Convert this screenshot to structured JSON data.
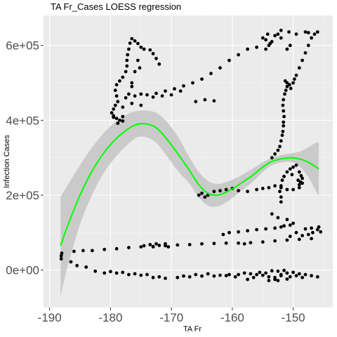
{
  "chart_data": {
    "type": "scatter",
    "title": "TA Fr_Cases LOESS regression",
    "xlabel": "TA Fr",
    "ylabel": "Infection Cases",
    "xlim": [
      -191,
      -143.5
    ],
    "ylim": [
      -100000,
      680000
    ],
    "x_ticks": [
      {
        "value": -190,
        "label": "-190"
      },
      {
        "value": -180,
        "label": "-180"
      },
      {
        "value": -170,
        "label": "-170"
      },
      {
        "value": -160,
        "label": "-160"
      },
      {
        "value": -150,
        "label": "-150"
      }
    ],
    "y_ticks": [
      {
        "value": 0,
        "label": "0e+00"
      },
      {
        "value": 200000,
        "label": "2e+05"
      },
      {
        "value": 400000,
        "label": "4e+05"
      },
      {
        "value": 600000,
        "label": "6e+05"
      }
    ],
    "grid": true,
    "colors": {
      "panel": "#ebebeb",
      "grid_major": "#ffffff",
      "grid_minor": "#f5f5f5",
      "points": "#000000",
      "fit_line": "#00ff00",
      "ribbon": "#c8c8c8"
    },
    "points": [
      [
        -188.1,
        38000
      ],
      [
        -188.1,
        30000
      ],
      [
        -186.5,
        22000
      ],
      [
        -185.5,
        12000
      ],
      [
        -184.0,
        8000
      ],
      [
        -182.5,
        -3000
      ],
      [
        -181.0,
        -8000
      ],
      [
        -179.0,
        -8000
      ],
      [
        -177.0,
        -12000
      ],
      [
        -175.0,
        -14000
      ],
      [
        -173.0,
        -20000
      ],
      [
        -171.0,
        -22000
      ],
      [
        -169.0,
        -20000
      ],
      [
        -167.0,
        -18000
      ],
      [
        -165.0,
        -16000
      ],
      [
        -163.0,
        -16000
      ],
      [
        -161.0,
        -15000
      ],
      [
        -159.0,
        -12000
      ],
      [
        -158.0,
        -8000
      ],
      [
        -157.0,
        -10000
      ],
      [
        -156.0,
        -12000
      ],
      [
        -155.0,
        -14000
      ],
      [
        -154.0,
        -18000
      ],
      [
        -153.0,
        -20000
      ],
      [
        -152.0,
        -12000
      ],
      [
        -151.0,
        -8000
      ],
      [
        -150.0,
        -6000
      ],
      [
        -149.0,
        -10000
      ],
      [
        -148.0,
        -12000
      ],
      [
        -147.0,
        -15000
      ],
      [
        -146.0,
        -18000
      ],
      [
        -153.5,
        -2000
      ],
      [
        -152.5,
        -3000
      ],
      [
        -151.5,
        -1000
      ],
      [
        -152.0,
        -15000
      ],
      [
        -153.0,
        -25000
      ],
      [
        -152.5,
        -28000
      ],
      [
        -154.0,
        -28000
      ],
      [
        -151.0,
        -24000
      ],
      [
        -154.5,
        -8000
      ],
      [
        -150.5,
        -18000
      ],
      [
        -149.5,
        -15000
      ],
      [
        -148.5,
        -20000
      ],
      [
        -157.5,
        -25000
      ],
      [
        -155.5,
        -6000
      ],
      [
        -156.5,
        -20000
      ],
      [
        -160.5,
        -12000
      ],
      [
        -159.5,
        -18000
      ],
      [
        -162.0,
        -14000
      ],
      [
        -164.0,
        -10000
      ],
      [
        -166.0,
        -12000
      ],
      [
        -168.0,
        -16000
      ],
      [
        -172.0,
        -18000
      ],
      [
        -174.0,
        -12000
      ],
      [
        -176.0,
        -10000
      ],
      [
        -178.0,
        -6000
      ],
      [
        -180.0,
        -4000
      ],
      [
        -188.0,
        45000
      ],
      [
        -186.0,
        50000
      ],
      [
        -184.5,
        52000
      ],
      [
        -183.0,
        52000
      ],
      [
        -181.0,
        55000
      ],
      [
        -179.0,
        57000
      ],
      [
        -177.0,
        60000
      ],
      [
        -175.0,
        62000
      ],
      [
        -173.0,
        63000
      ],
      [
        -171.0,
        65000
      ],
      [
        -169.0,
        67000
      ],
      [
        -167.0,
        68000
      ],
      [
        -165.0,
        70000
      ],
      [
        -163.0,
        71000
      ],
      [
        -161.0,
        72000
      ],
      [
        -159.0,
        72000
      ],
      [
        -157.0,
        73000
      ],
      [
        -155.0,
        75000
      ],
      [
        -153.0,
        78000
      ],
      [
        -151.0,
        80000
      ],
      [
        -149.0,
        82000
      ],
      [
        -147.0,
        84000
      ],
      [
        -158.0,
        70000
      ],
      [
        -173.5,
        68000
      ],
      [
        -173.0,
        62000
      ],
      [
        -172.5,
        70000
      ],
      [
        -172.0,
        66000
      ],
      [
        -171.0,
        70000
      ],
      [
        -170.5,
        62000
      ],
      [
        -174.5,
        65000
      ],
      [
        -161.5,
        95000
      ],
      [
        -160.5,
        100000
      ],
      [
        -159.0,
        102000
      ],
      [
        -157.5,
        105000
      ],
      [
        -156.0,
        108000
      ],
      [
        -154.5,
        110000
      ],
      [
        -153.0,
        112000
      ],
      [
        -152.0,
        115000
      ],
      [
        -151.5,
        118000
      ],
      [
        -150.5,
        120000
      ],
      [
        -150.0,
        125000
      ],
      [
        -151.0,
        135000
      ],
      [
        -152.5,
        140000
      ],
      [
        -153.5,
        150000
      ],
      [
        -148.0,
        110000
      ],
      [
        -147.0,
        112000
      ],
      [
        -146.0,
        108000
      ],
      [
        -145.5,
        102000
      ],
      [
        -145.8,
        115000
      ],
      [
        -146.8,
        100000
      ],
      [
        -147.5,
        95000
      ],
      [
        -148.5,
        92000
      ],
      [
        -149.5,
        100000
      ],
      [
        -150.5,
        90000
      ],
      [
        -152.0,
        182000
      ],
      [
        -152.0,
        195000
      ],
      [
        -152.2,
        210000
      ],
      [
        -152.0,
        225000
      ],
      [
        -151.8,
        240000
      ],
      [
        -151.5,
        250000
      ],
      [
        -165.5,
        200000
      ],
      [
        -165.0,
        205000
      ],
      [
        -164.0,
        200000
      ],
      [
        -163.0,
        210000
      ],
      [
        -162.0,
        212000
      ],
      [
        -161.0,
        215000
      ],
      [
        -160.0,
        218000
      ],
      [
        -159.0,
        212000
      ],
      [
        -157.5,
        210000
      ],
      [
        -156.0,
        215000
      ],
      [
        -155.0,
        218000
      ],
      [
        -154.0,
        220000
      ],
      [
        -153.0,
        225000
      ],
      [
        -152.0,
        220000
      ],
      [
        -151.0,
        215000
      ],
      [
        -150.0,
        215000
      ],
      [
        -149.0,
        220000
      ],
      [
        -164.5,
        195000
      ],
      [
        -153.5,
        300000
      ],
      [
        -153.0,
        310000
      ],
      [
        -152.5,
        320000
      ],
      [
        -152.2,
        330000
      ],
      [
        -152.0,
        345000
      ],
      [
        -151.8,
        360000
      ],
      [
        -151.7,
        370000
      ],
      [
        -151.6,
        385000
      ],
      [
        -151.6,
        395000
      ],
      [
        -151.5,
        410000
      ],
      [
        -151.6,
        425000
      ],
      [
        -151.7,
        440000
      ],
      [
        -151.6,
        455000
      ],
      [
        -151.4,
        470000
      ],
      [
        -151.2,
        480000
      ],
      [
        -151.0,
        490000
      ],
      [
        -150.6,
        495000
      ],
      [
        -150.0,
        500000
      ],
      [
        -149.8,
        510000
      ],
      [
        -150.4,
        485000
      ],
      [
        -151.0,
        500000
      ],
      [
        -151.3,
        505000
      ],
      [
        -151.5,
        250000
      ],
      [
        -151.0,
        262000
      ],
      [
        -150.5,
        270000
      ],
      [
        -150.0,
        275000
      ],
      [
        -149.5,
        280000
      ],
      [
        -149.0,
        262000
      ],
      [
        -148.7,
        252000
      ],
      [
        -148.5,
        245000
      ],
      [
        -148.8,
        235000
      ],
      [
        -149.2,
        240000
      ],
      [
        -150.2,
        255000
      ],
      [
        -149.0,
        228000
      ],
      [
        -148.5,
        232000
      ],
      [
        -149.5,
        520000
      ],
      [
        -149.0,
        540000
      ],
      [
        -148.5,
        560000
      ],
      [
        -148.0,
        580000
      ],
      [
        -147.5,
        600000
      ],
      [
        -147.0,
        620000
      ],
      [
        -146.5,
        630000
      ],
      [
        -146.0,
        636000
      ],
      [
        -147.5,
        634000
      ],
      [
        -148.0,
        636000
      ],
      [
        -150.5,
        600000
      ],
      [
        -151.0,
        590000
      ],
      [
        -152.0,
        620000
      ],
      [
        -152.5,
        630000
      ],
      [
        -153.0,
        626000
      ],
      [
        -153.5,
        610000
      ],
      [
        -154.0,
        600000
      ],
      [
        -154.5,
        590000
      ],
      [
        -155.0,
        620000
      ],
      [
        -154.2,
        630000
      ],
      [
        -153.8,
        605000
      ],
      [
        -154.5,
        615000
      ],
      [
        -152.0,
        640000
      ],
      [
        -150.7,
        636000
      ],
      [
        -149.5,
        630000
      ],
      [
        -156.0,
        595000
      ],
      [
        -157.5,
        590000
      ],
      [
        -159.0,
        575000
      ],
      [
        -160.5,
        560000
      ],
      [
        -162.0,
        540000
      ],
      [
        -163.5,
        525000
      ],
      [
        -165.0,
        510000
      ],
      [
        -166.5,
        500000
      ],
      [
        -168.0,
        492000
      ],
      [
        -169.5,
        484000
      ],
      [
        -171.0,
        478000
      ],
      [
        -172.5,
        472000
      ],
      [
        -174.0,
        468000
      ],
      [
        -175.0,
        595000
      ],
      [
        -175.5,
        605000
      ],
      [
        -176.0,
        612000
      ],
      [
        -176.5,
        618000
      ],
      [
        -176.8,
        606000
      ],
      [
        -177.0,
        590000
      ],
      [
        -177.2,
        575000
      ],
      [
        -177.3,
        560000
      ],
      [
        -177.3,
        545000
      ],
      [
        -177.5,
        530000
      ],
      [
        -178.0,
        515000
      ],
      [
        -178.5,
        505000
      ],
      [
        -179.0,
        495000
      ],
      [
        -179.2,
        480000
      ],
      [
        -179.0,
        465000
      ],
      [
        -178.8,
        450000
      ],
      [
        -179.2,
        440000
      ],
      [
        -179.5,
        430000
      ],
      [
        -179.8,
        420000
      ],
      [
        -179.5,
        412000
      ],
      [
        -179.0,
        405000
      ],
      [
        -178.5,
        400000
      ],
      [
        -178.0,
        398000
      ],
      [
        -178.8,
        392000
      ],
      [
        -179.5,
        408000
      ],
      [
        -178.0,
        410000
      ],
      [
        -173.5,
        588000
      ],
      [
        -173.0,
        578000
      ],
      [
        -172.5,
        565000
      ],
      [
        -172.0,
        550000
      ],
      [
        -174.5,
        590000
      ],
      [
        -175.5,
        560000
      ],
      [
        -175.2,
        540000
      ],
      [
        -176.0,
        530000
      ],
      [
        -176.5,
        500000
      ],
      [
        -176.5,
        490000
      ],
      [
        -177.0,
        470000
      ],
      [
        -177.5,
        460000
      ],
      [
        -176.0,
        465000
      ],
      [
        -175.0,
        470000
      ],
      [
        -173.0,
        462000
      ],
      [
        -171.5,
        465000
      ],
      [
        -170.0,
        468000
      ],
      [
        -168.5,
        478000
      ],
      [
        -166.0,
        450000
      ],
      [
        -164.5,
        455000
      ],
      [
        -163.0,
        452000
      ],
      [
        -176.5,
        445000
      ],
      [
        -175.0,
        440000
      ],
      [
        -178.0,
        435000
      ]
    ],
    "fit": [
      [
        -188.2,
        65000
      ],
      [
        -187.0,
        120000
      ],
      [
        -185.0,
        200000
      ],
      [
        -183.0,
        265000
      ],
      [
        -181.0,
        315000
      ],
      [
        -179.0,
        352000
      ],
      [
        -177.0,
        378000
      ],
      [
        -175.5,
        390000
      ],
      [
        -174.0,
        390000
      ],
      [
        -172.5,
        380000
      ],
      [
        -171.0,
        355000
      ],
      [
        -169.0,
        312000
      ],
      [
        -167.0,
        265000
      ],
      [
        -165.5,
        228000
      ],
      [
        -164.0,
        205000
      ],
      [
        -162.5,
        200000
      ],
      [
        -161.0,
        208000
      ],
      [
        -159.5,
        222000
      ],
      [
        -158.0,
        238000
      ],
      [
        -156.5,
        255000
      ],
      [
        -155.0,
        275000
      ],
      [
        -153.5,
        290000
      ],
      [
        -152.0,
        297000
      ],
      [
        -150.5,
        300000
      ],
      [
        -149.0,
        297000
      ],
      [
        -147.5,
        288000
      ],
      [
        -146.5,
        278000
      ],
      [
        -145.8,
        270000
      ]
    ],
    "fit_upper": [
      [
        -188.2,
        195000
      ],
      [
        -187.0,
        228000
      ],
      [
        -185.0,
        280000
      ],
      [
        -183.0,
        328000
      ],
      [
        -181.0,
        368000
      ],
      [
        -179.0,
        398000
      ],
      [
        -177.0,
        418000
      ],
      [
        -175.5,
        425000
      ],
      [
        -174.0,
        426000
      ],
      [
        -172.5,
        420000
      ],
      [
        -171.0,
        400000
      ],
      [
        -169.0,
        358000
      ],
      [
        -167.0,
        300000
      ],
      [
        -165.5,
        262000
      ],
      [
        -164.0,
        238000
      ],
      [
        -162.5,
        230000
      ],
      [
        -161.0,
        235000
      ],
      [
        -159.5,
        245000
      ],
      [
        -158.0,
        258000
      ],
      [
        -156.5,
        272000
      ],
      [
        -155.0,
        288000
      ],
      [
        -153.5,
        300000
      ],
      [
        -152.0,
        307000
      ],
      [
        -150.5,
        311000
      ],
      [
        -149.0,
        316000
      ],
      [
        -147.5,
        328000
      ],
      [
        -146.5,
        338000
      ],
      [
        -145.8,
        342000
      ]
    ],
    "fit_lower": [
      [
        -188.2,
        -70000
      ],
      [
        -187.0,
        12000
      ],
      [
        -185.0,
        122000
      ],
      [
        -183.0,
        202000
      ],
      [
        -181.0,
        262000
      ],
      [
        -179.0,
        305000
      ],
      [
        -177.0,
        338000
      ],
      [
        -175.5,
        355000
      ],
      [
        -174.0,
        354000
      ],
      [
        -172.5,
        340000
      ],
      [
        -171.0,
        310000
      ],
      [
        -169.0,
        266000
      ],
      [
        -167.0,
        230000
      ],
      [
        -165.5,
        194000
      ],
      [
        -164.0,
        172000
      ],
      [
        -162.5,
        170000
      ],
      [
        -161.0,
        181000
      ],
      [
        -159.5,
        199000
      ],
      [
        -158.0,
        218000
      ],
      [
        -156.5,
        238000
      ],
      [
        -155.0,
        262000
      ],
      [
        -153.5,
        280000
      ],
      [
        -152.0,
        287000
      ],
      [
        -150.5,
        289000
      ],
      [
        -149.0,
        278000
      ],
      [
        -147.5,
        248000
      ],
      [
        -146.5,
        218000
      ],
      [
        -145.8,
        198000
      ]
    ]
  }
}
